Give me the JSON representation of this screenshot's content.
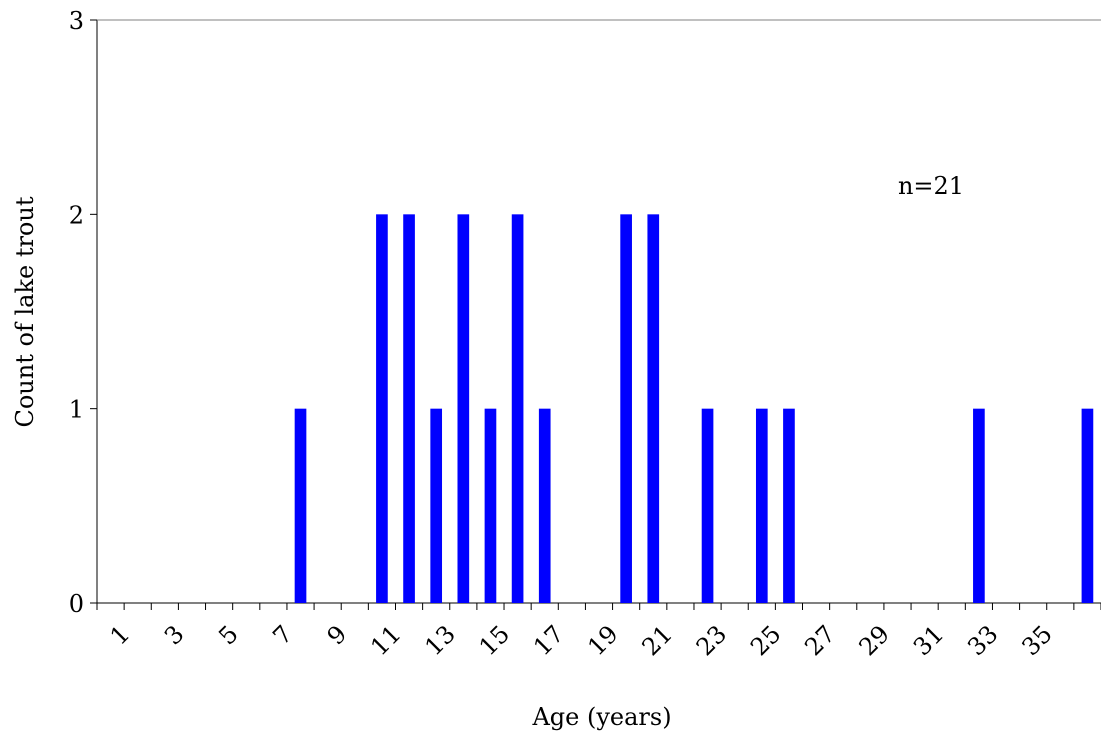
{
  "chart_data": {
    "type": "bar",
    "title": "",
    "xlabel": "Age (years)",
    "ylabel": "Count of lake trout",
    "annotation": "n=21",
    "x_categories": [
      1,
      2,
      3,
      4,
      5,
      6,
      7,
      8,
      9,
      10,
      11,
      12,
      13,
      14,
      15,
      16,
      17,
      18,
      19,
      20,
      21,
      22,
      23,
      24,
      25,
      26,
      27,
      28,
      29,
      30,
      31,
      32,
      33,
      34,
      35,
      36,
      37
    ],
    "x_tick_labels": [
      "1",
      "3",
      "5",
      "7",
      "9",
      "11",
      "13",
      "15",
      "17",
      "19",
      "21",
      "23",
      "25",
      "27",
      "29",
      "31",
      "33",
      "35"
    ],
    "values": [
      0,
      0,
      0,
      0,
      0,
      0,
      0,
      1,
      0,
      0,
      2,
      2,
      1,
      2,
      1,
      2,
      1,
      0,
      0,
      2,
      2,
      0,
      1,
      0,
      1,
      1,
      0,
      0,
      0,
      0,
      0,
      0,
      1,
      0,
      0,
      0,
      1
    ],
    "y_ticks": [
      "0",
      "1",
      "2",
      "3"
    ],
    "ylim": [
      0,
      3
    ],
    "grid": false,
    "bar_color": "#0000FF"
  }
}
